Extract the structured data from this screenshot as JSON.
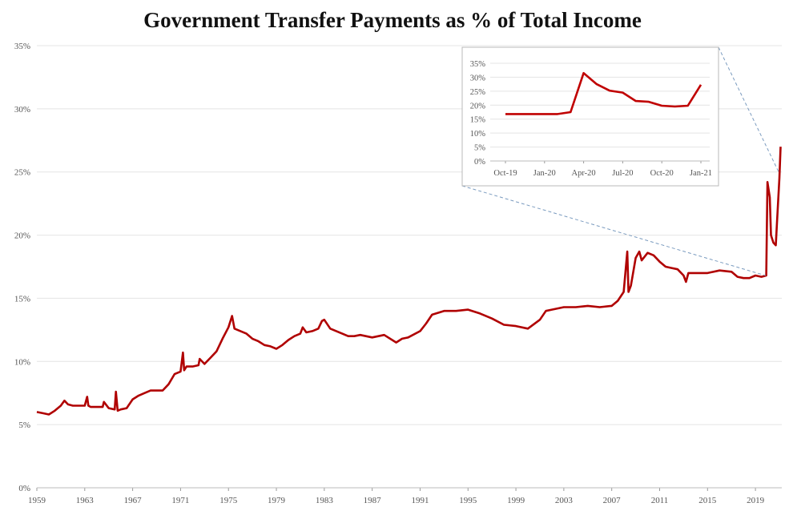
{
  "chart_data": [
    {
      "type": "line",
      "title": "Government Transfer Payments as % of  Total Income",
      "xlabel": "",
      "ylabel": "",
      "ylim": [
        0,
        35
      ],
      "xlim": [
        1959,
        2021.2
      ],
      "y_ticks": [
        "0%",
        "5%",
        "10%",
        "15%",
        "20%",
        "25%",
        "30%",
        "35%"
      ],
      "x_ticks": [
        "1959",
        "1963",
        "1967",
        "1971",
        "1975",
        "1979",
        "1983",
        "1987",
        "1991",
        "1995",
        "1999",
        "2003",
        "2007",
        "2011",
        "2015",
        "2019"
      ],
      "grid": "horizontal",
      "line_color": "#b00000",
      "series": [
        {
          "x": [
            1959.0,
            1959.5,
            1960.0,
            1960.5,
            1961.0,
            1961.3,
            1961.6,
            1962.0,
            1962.5,
            1963.0,
            1963.2,
            1963.3,
            1963.5,
            1964.0,
            1964.5,
            1964.6,
            1965.0,
            1965.5,
            1965.6,
            1965.75,
            1966.0,
            1966.5,
            1967.0,
            1967.5,
            1968.0,
            1968.5,
            1969.0,
            1969.5,
            1970.0,
            1970.5,
            1971.0,
            1971.2,
            1971.3,
            1971.5,
            1972.0,
            1972.5,
            1972.6,
            1973.0,
            1973.5,
            1974.0,
            1974.5,
            1975.0,
            1975.3,
            1975.5,
            1976.0,
            1976.5,
            1977.0,
            1977.5,
            1978.0,
            1978.5,
            1979.0,
            1979.5,
            1980.0,
            1980.5,
            1981.0,
            1981.2,
            1981.5,
            1982.0,
            1982.5,
            1982.8,
            1983.0,
            1983.5,
            1984.0,
            1984.5,
            1985.0,
            1985.5,
            1986.0,
            1987.0,
            1988.0,
            1989.0,
            1989.5,
            1990.0,
            1991.0,
            1991.5,
            1992.0,
            1993.0,
            1994.0,
            1995.0,
            1996.0,
            1997.0,
            1998.0,
            1999.0,
            2000.0,
            2001.0,
            2001.5,
            2002.0,
            2003.0,
            2004.0,
            2005.0,
            2006.0,
            2007.0,
            2007.5,
            2008.0,
            2008.3,
            2008.4,
            2008.6,
            2009.0,
            2009.3,
            2009.5,
            2010.0,
            2010.5,
            2011.0,
            2011.5,
            2012.0,
            2012.5,
            2013.0,
            2013.2,
            2013.4,
            2014.0,
            2015.0,
            2016.0,
            2017.0,
            2017.5,
            2018.0,
            2018.5,
            2019.0,
            2019.5,
            2019.9,
            2020.0,
            2020.2,
            2020.3,
            2020.5,
            2020.7,
            2020.8,
            2021.0,
            2021.1
          ],
          "values": [
            6.0,
            5.9,
            5.8,
            6.1,
            6.5,
            6.9,
            6.6,
            6.5,
            6.5,
            6.5,
            7.2,
            6.5,
            6.4,
            6.4,
            6.4,
            6.8,
            6.3,
            6.2,
            7.6,
            6.1,
            6.2,
            6.3,
            7.0,
            7.3,
            7.5,
            7.7,
            7.7,
            7.7,
            8.2,
            9.0,
            9.2,
            10.7,
            9.3,
            9.6,
            9.6,
            9.7,
            10.2,
            9.8,
            10.3,
            10.8,
            11.8,
            12.7,
            13.6,
            12.6,
            12.4,
            12.2,
            11.8,
            11.6,
            11.3,
            11.2,
            11.0,
            11.3,
            11.7,
            12.0,
            12.2,
            12.7,
            12.3,
            12.4,
            12.6,
            13.2,
            13.3,
            12.6,
            12.4,
            12.2,
            12.0,
            12.0,
            12.1,
            11.9,
            12.1,
            11.5,
            11.8,
            11.9,
            12.4,
            13.0,
            13.7,
            14.0,
            14.0,
            14.1,
            13.8,
            13.4,
            12.9,
            12.8,
            12.6,
            13.3,
            14.0,
            14.1,
            14.3,
            14.3,
            14.4,
            14.3,
            14.4,
            14.8,
            15.5,
            18.7,
            15.5,
            16.0,
            18.2,
            18.7,
            18.0,
            18.6,
            18.4,
            17.9,
            17.5,
            17.4,
            17.3,
            16.8,
            16.3,
            17.0,
            17.0,
            17.0,
            17.2,
            17.1,
            16.7,
            16.6,
            16.6,
            16.8,
            16.7,
            16.8,
            24.2,
            23.0,
            20.0,
            19.4,
            19.2,
            21.0,
            24.5,
            27.0
          ]
        }
      ]
    },
    {
      "type": "line",
      "title": "",
      "xlabel": "",
      "ylabel": "",
      "ylim": [
        0,
        35
      ],
      "y_ticks": [
        "0%",
        "5%",
        "10%",
        "15%",
        "20%",
        "25%",
        "30%",
        "35%"
      ],
      "x_ticks": [
        "Oct-19",
        "Jan-20",
        "Apr-20",
        "Jul-20",
        "Oct-20",
        "Jan-21"
      ],
      "grid": "horizontal",
      "line_color": "#c00000",
      "series": [
        {
          "x": [
            "Oct-19",
            "Nov-19",
            "Dec-19",
            "Jan-20",
            "Feb-20",
            "Mar-20",
            "Apr-20",
            "May-20",
            "Jun-20",
            "Jul-20",
            "Aug-20",
            "Sep-20",
            "Oct-20",
            "Nov-20",
            "Dec-20",
            "Jan-21"
          ],
          "values": [
            16.8,
            16.8,
            16.8,
            16.8,
            16.8,
            17.5,
            31.5,
            27.5,
            25.2,
            24.5,
            21.5,
            21.2,
            19.8,
            19.5,
            19.8,
            27.3
          ]
        }
      ]
    }
  ]
}
